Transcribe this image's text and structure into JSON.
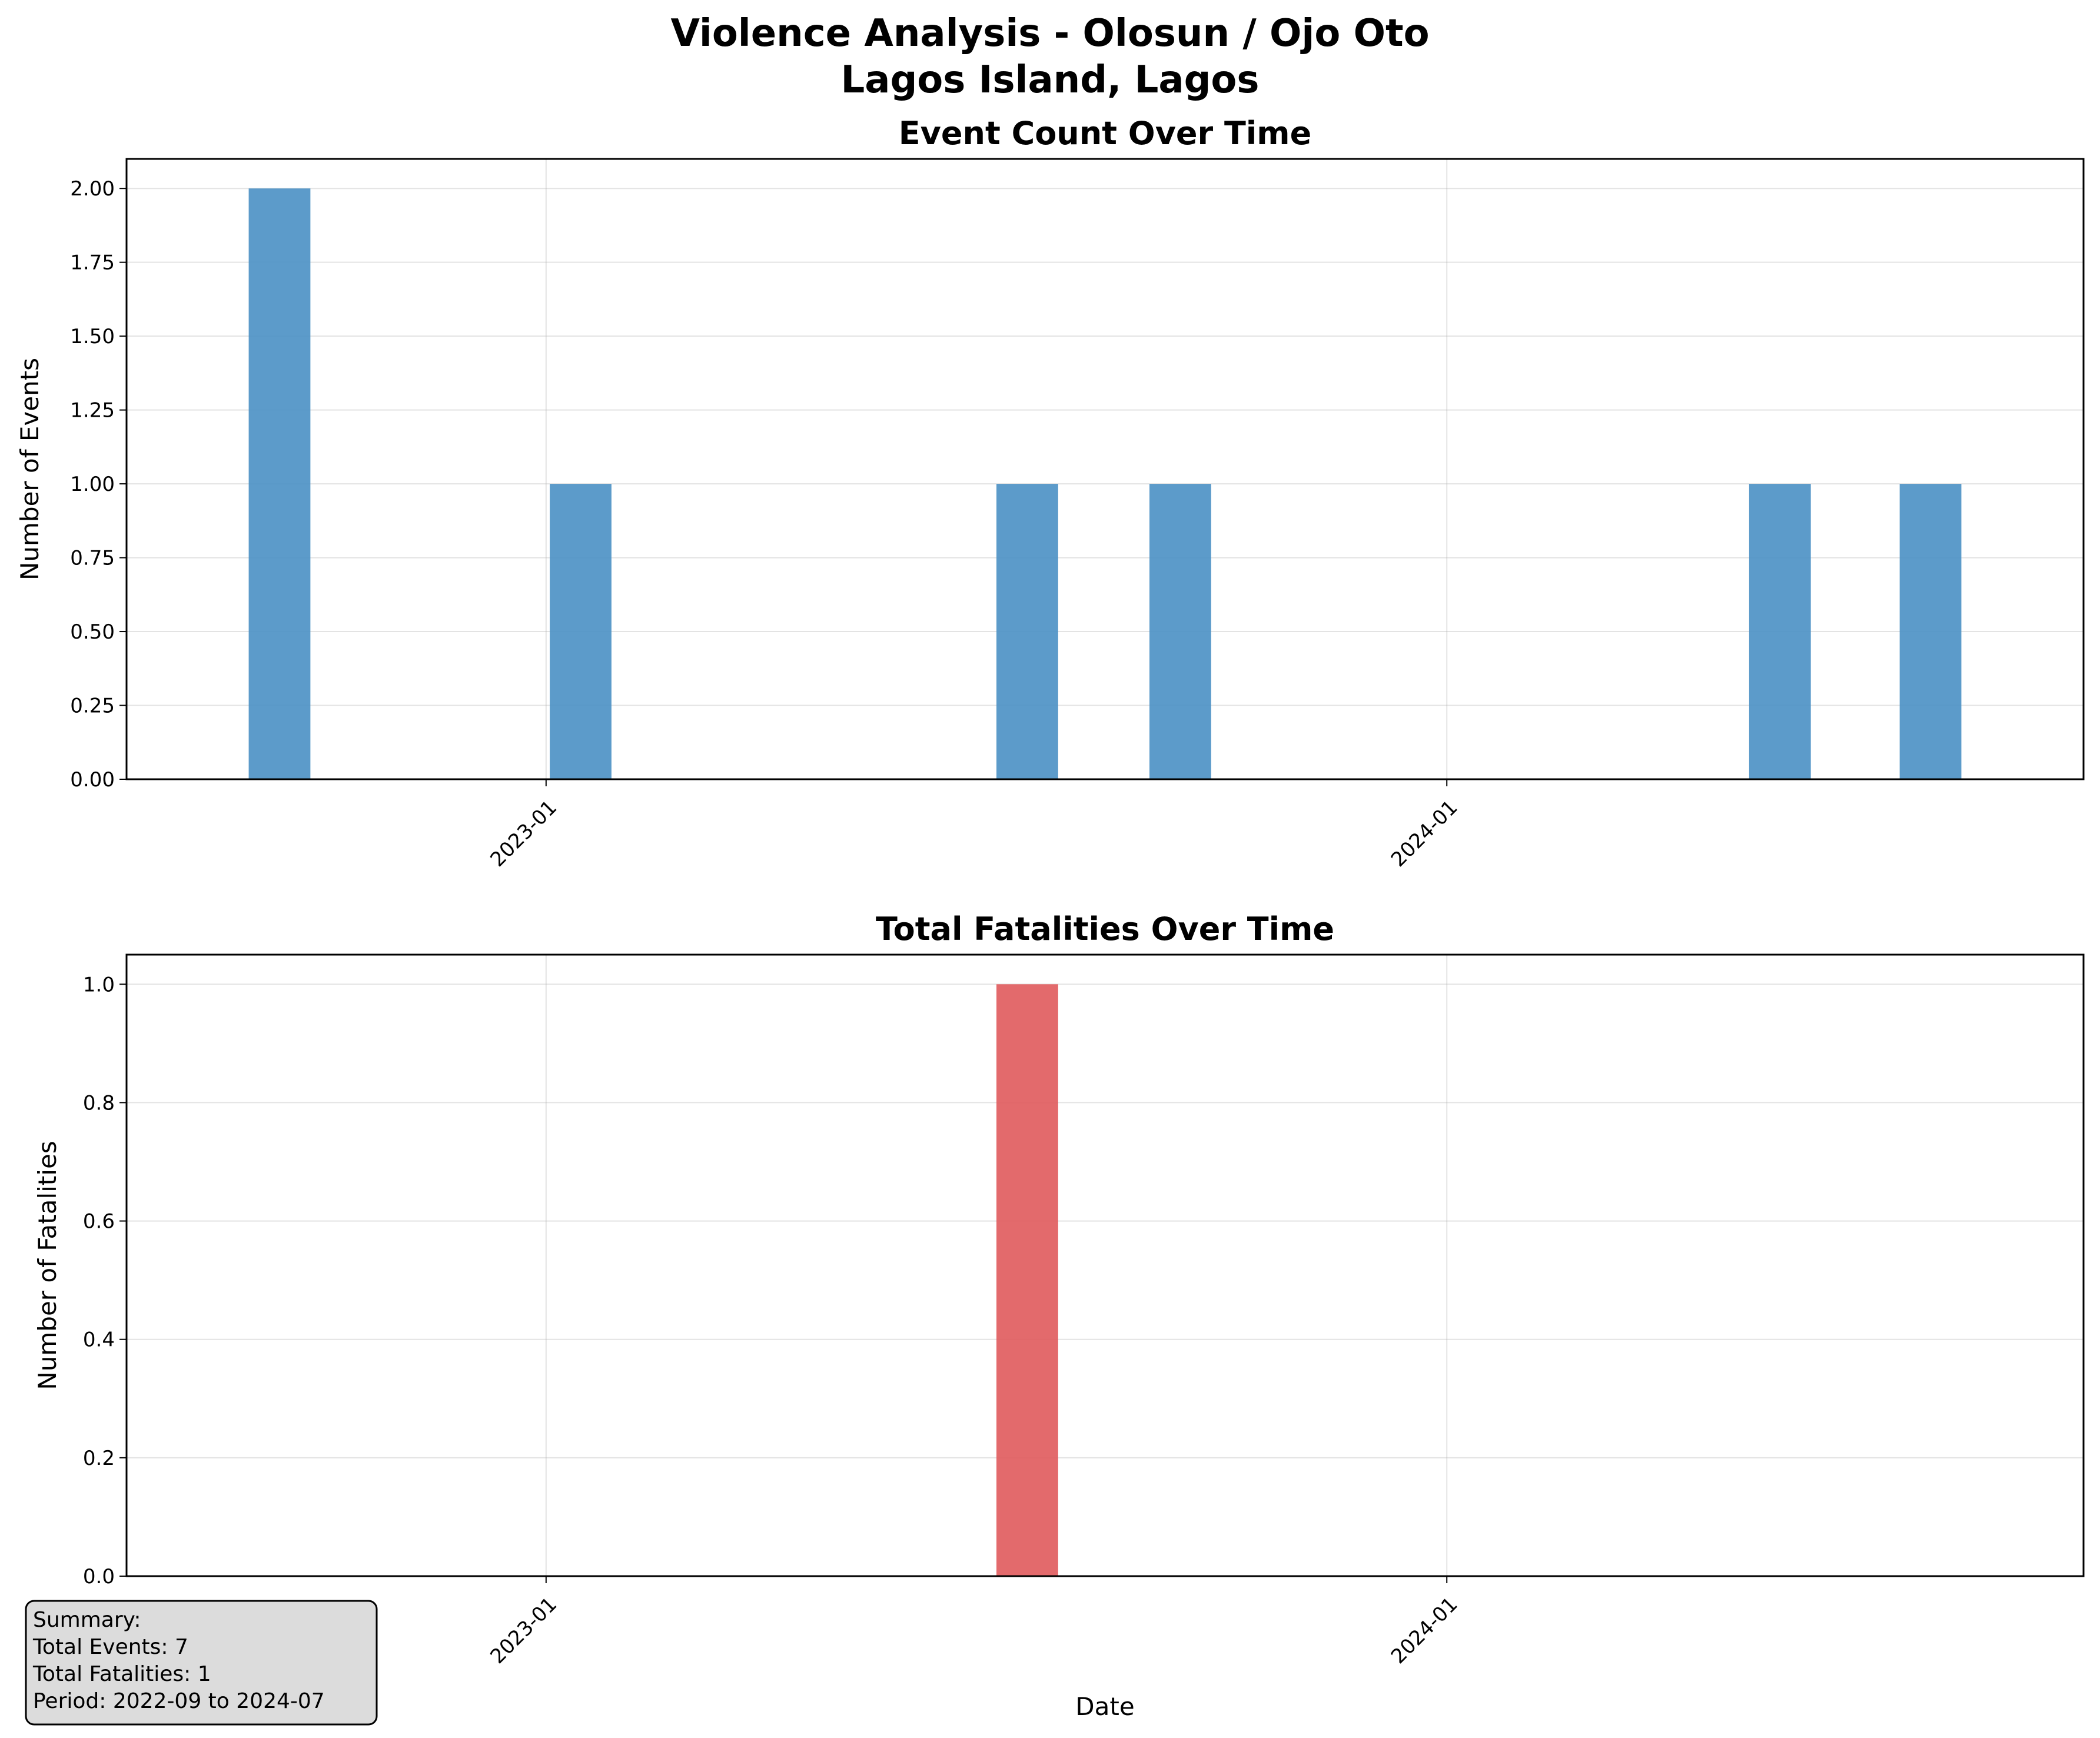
{
  "figure": {
    "title_line1": "Violence Analysis - Olosun / Ojo Oto",
    "title_line2": "Lagos Island, Lagos"
  },
  "chart_data": [
    {
      "type": "bar",
      "title": "Event Count Over Time",
      "xlabel": "",
      "ylabel": "Number of Events",
      "bar_color": "#4a90c4",
      "grid": true,
      "x_tick_labels": [
        "2023-01",
        "2024-01"
      ],
      "x_tick_dates": [
        "2023-01",
        "2024-01"
      ],
      "x_range": [
        "2022-07-15",
        "2024-09-15"
      ],
      "ylim": [
        0,
        2.1
      ],
      "yticks": [
        0,
        0.25,
        0.5,
        0.75,
        1.0,
        1.25,
        1.5,
        1.75,
        2.0
      ],
      "ytick_labels": [
        "0.00",
        "0.25",
        "0.50",
        "0.75",
        "1.00",
        "1.25",
        "1.50",
        "1.75",
        "2.00"
      ],
      "categories": [
        "2022-09",
        "2023-01",
        "2023-07",
        "2023-09",
        "2024-05",
        "2024-07"
      ],
      "values": [
        2,
        1,
        1,
        1,
        1,
        1
      ]
    },
    {
      "type": "bar",
      "title": "Total Fatalities Over Time",
      "xlabel": "Date",
      "ylabel": "Number of Fatalities",
      "bar_color": "#e05a5c",
      "grid": true,
      "x_tick_labels": [
        "2023-01",
        "2024-01"
      ],
      "x_tick_dates": [
        "2023-01",
        "2024-01"
      ],
      "x_range": [
        "2022-07-15",
        "2024-09-15"
      ],
      "ylim": [
        0,
        1.05
      ],
      "yticks": [
        0,
        0.2,
        0.4,
        0.6,
        0.8,
        1.0
      ],
      "ytick_labels": [
        "0.0",
        "0.2",
        "0.4",
        "0.6",
        "0.8",
        "1.0"
      ],
      "categories": [
        "2023-07"
      ],
      "values": [
        1
      ]
    }
  ],
  "summary": {
    "lines": [
      "Summary:",
      "Total Events: 7",
      "Total Fatalities: 1",
      "Period: 2022-09 to 2024-07"
    ]
  }
}
